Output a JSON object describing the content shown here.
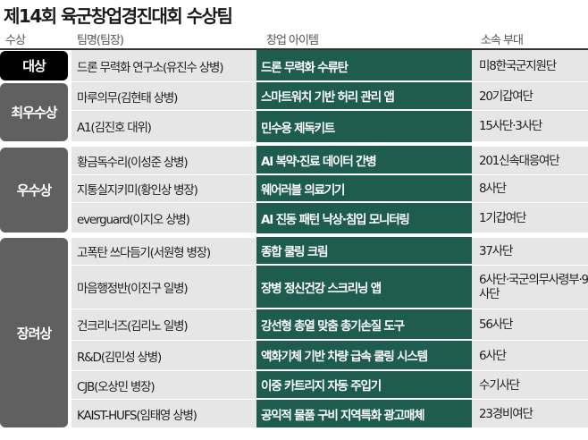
{
  "title": "제14회 육군창업경진대회 수상팀",
  "headers": {
    "prize": "수상",
    "team": "팀명(팀장)",
    "item": "창업 아이템",
    "unit": "소속 부대"
  },
  "prizes": [
    "대상",
    "최우수상",
    "우수상",
    "장려상"
  ],
  "rows": [
    {
      "team": "드론 무력화 연구소(유진수 상병)",
      "item": "드론 무력화 수류탄",
      "unit": "미8한국군지원단"
    },
    {
      "team": "마루의무(김현태 상병)",
      "item": "스마트워치 기반 허리 관리 앱",
      "unit": "20기갑여단"
    },
    {
      "team": "A1(김진호 대위)",
      "item": "민수용 제독키트",
      "unit": "15사단·3사단"
    },
    {
      "team": "황금독수리(이성준 상병)",
      "item": "AI 복약·진료 데이터 간병",
      "unit": "201신속대응여단"
    },
    {
      "team": "지통실지키미(황인상 병장)",
      "item": "웨어러블 의료기기",
      "unit": "8사단"
    },
    {
      "team": "everguard(이지오 상병)",
      "item": "AI 진동 패턴 낙상·침입 모니터링",
      "unit": "1기갑여단"
    },
    {
      "team": "고폭탄 쓰다듬기(서원형 병장)",
      "item": "종합 쿨링 크림",
      "unit": "37사단"
    },
    {
      "team": "마음행정반(이진구 일병)",
      "item": "장병 정신건강 스크리닝 앱",
      "unit": "6사단·국군의무사령부·9사단"
    },
    {
      "team": "건크리너즈(김리노 일병)",
      "item": "강선형 총열 맞춤 총기손질 도구",
      "unit": "56사단"
    },
    {
      "team": "R&D(김민성 상병)",
      "item": "액화기체 기반 차량 급속 쿨링 시스템",
      "unit": "6사단"
    },
    {
      "team": "CJB(오상민 병장)",
      "item": "이중 카트리지 자동 주입기",
      "unit": "수기사단"
    },
    {
      "team": "KAIST-HUFS(임태영 상병)",
      "item": "공익적 물품 구비 지역특화 광고매체",
      "unit": "23경비여단"
    }
  ]
}
